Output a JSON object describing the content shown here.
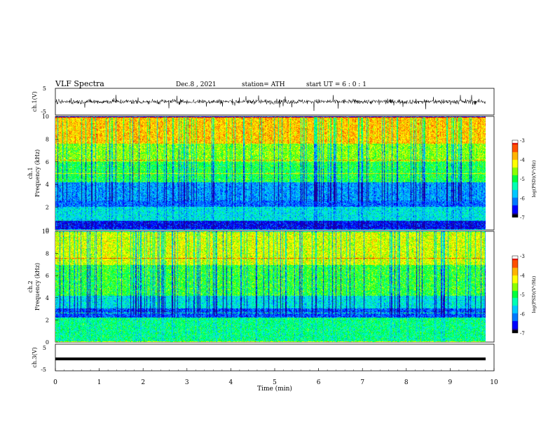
{
  "header": {
    "title": "VLF  Spectra",
    "date": "Dec.8  , 2021",
    "station": "station= ATH",
    "start": "start  UT  =    6  : 0   : 1"
  },
  "chart_data": [
    {
      "type": "line",
      "name": "ch1-waveform",
      "ylabel": "ch.1(V)",
      "ylim": [
        -5,
        5
      ],
      "yticks": [
        "5",
        "-5"
      ],
      "xlim": [
        0,
        9.8
      ],
      "description_of_signal": "noisy waveform centered near 0 V, amplitude about ±2 V with spikes"
    },
    {
      "type": "heatmap",
      "name": "ch1-spectrogram",
      "title": "ch.1",
      "ylabel": "Frequency  (kHz)",
      "ylim": [
        0,
        10
      ],
      "yticks": [
        "0",
        "2",
        "4",
        "6",
        "8",
        "10"
      ],
      "xlim": [
        0,
        9.8
      ],
      "zlabel": "log(PSD)(V²/Hz)",
      "zlim": [
        -7,
        -3
      ],
      "colorbar_ticks": [
        "-3",
        "-4",
        "-5",
        "-6",
        "-7"
      ],
      "bands": [
        {
          "f_min": 0.0,
          "f_max": 0.8,
          "level": -6.6
        },
        {
          "f_min": 0.8,
          "f_max": 2.0,
          "level": -5.6
        },
        {
          "f_min": 2.0,
          "f_max": 2.6,
          "level": -6.2
        },
        {
          "f_min": 2.6,
          "f_max": 4.2,
          "level": -6.0
        },
        {
          "f_min": 4.2,
          "f_max": 6.0,
          "level": -5.0
        },
        {
          "f_min": 6.0,
          "f_max": 7.6,
          "level": -4.6
        },
        {
          "f_min": 7.6,
          "f_max": 10.0,
          "level": -3.9
        }
      ]
    },
    {
      "type": "heatmap",
      "name": "ch2-spectrogram",
      "title": "ch.2",
      "ylabel": "Frequency  (kHz)",
      "ylim": [
        0,
        10
      ],
      "yticks": [
        "0",
        "2",
        "4",
        "6",
        "8",
        "10"
      ],
      "xlim": [
        0,
        9.8
      ],
      "zlabel": "log(PSD)(V²/Hz)",
      "zlim": [
        -7,
        -3
      ],
      "colorbar_ticks": [
        "-3",
        "-4",
        "-5",
        "-6",
        "-7"
      ],
      "bands": [
        {
          "f_min": 0.0,
          "f_max": 2.2,
          "level": -5.2
        },
        {
          "f_min": 2.2,
          "f_max": 3.0,
          "level": -6.3
        },
        {
          "f_min": 3.0,
          "f_max": 4.2,
          "level": -5.6
        },
        {
          "f_min": 4.2,
          "f_max": 7.0,
          "level": -4.9
        },
        {
          "f_min": 7.0,
          "f_max": 10.0,
          "level": -4.3
        }
      ]
    },
    {
      "type": "line",
      "name": "ch3-waveform",
      "ylabel": "ch.3(V)",
      "ylim": [
        -5,
        5
      ],
      "yticks": [
        "5",
        "-5"
      ],
      "xlim": [
        0,
        9.8
      ],
      "constant_level": 0
    }
  ],
  "x_axis": {
    "label": "Time  (min)",
    "range": [
      0,
      10
    ],
    "ticks": [
      "0",
      "1",
      "2",
      "3",
      "4",
      "5",
      "6",
      "7",
      "8",
      "9",
      "10"
    ]
  },
  "colors": {
    "colormap": [
      "#000000",
      "#1a0096",
      "#0000ff",
      "#0078ff",
      "#00c8ff",
      "#00ffb4",
      "#00ff3c",
      "#8cff00",
      "#ffff00",
      "#ffb400",
      "#ff5000",
      "#dc0000",
      "#ffffff"
    ]
  }
}
